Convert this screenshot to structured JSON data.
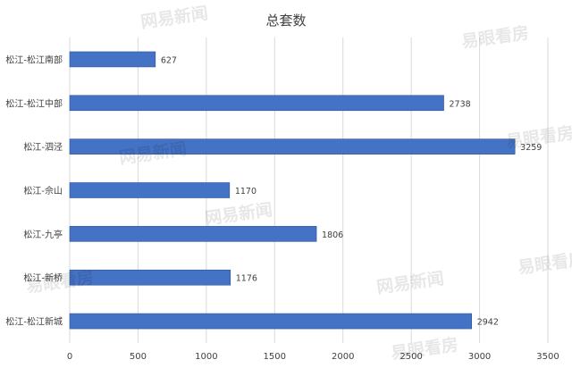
{
  "chart_data": {
    "type": "bar",
    "orientation": "horizontal",
    "title": "总套数",
    "xlabel": "",
    "ylabel": "",
    "categories": [
      "松江-松江南部",
      "松江-松江中部",
      "松江-泗泾",
      "松江-佘山",
      "松江-九亭",
      "松江-新桥",
      "松江-松江新城"
    ],
    "values": [
      627,
      2738,
      3259,
      1170,
      1806,
      1176,
      2942
    ],
    "xlim": [
      0,
      3500
    ],
    "xticks": [
      0,
      500,
      1000,
      1500,
      2000,
      2500,
      3000,
      3500
    ],
    "grid": true,
    "legend": "none",
    "data_labels": true
  },
  "colors": {
    "bar": "#4472C4",
    "bar_edge": "#2F5597",
    "grid": "#D9D9D9",
    "text": "#404040",
    "title": "#404040"
  },
  "watermarks": [
    "网易新闻",
    "易眼看房"
  ]
}
